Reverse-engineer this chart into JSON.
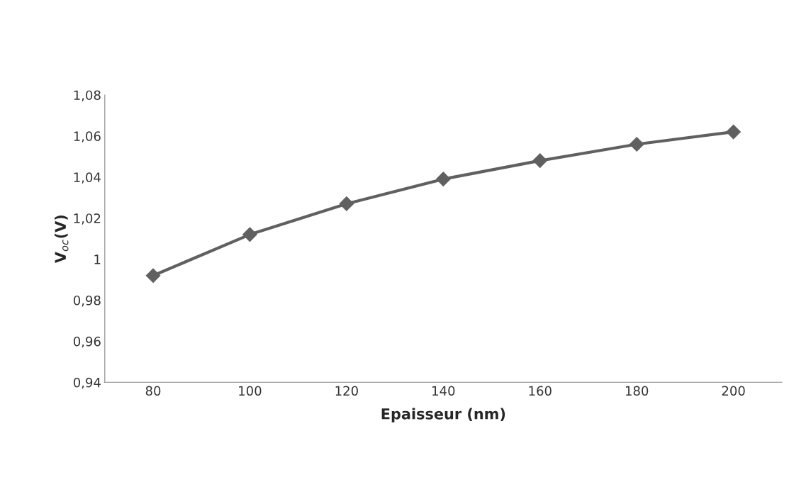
{
  "chart_data": {
    "type": "line",
    "xlabel": "Epaisseur (nm)",
    "ylabel": "V$_{oc}$(V)",
    "categories": [
      "80",
      "100",
      "120",
      "140",
      "160",
      "180",
      "200"
    ],
    "series": [
      {
        "color": "#606060",
        "values": [
          0.992,
          1.012,
          1.027,
          1.039,
          1.048,
          1.056,
          1.062
        ]
      }
    ],
    "ylim": [
      0.94,
      1.08
    ],
    "yticks": [
      {
        "value": 0.94,
        "label": "0,94"
      },
      {
        "value": 0.96,
        "label": "0,96"
      },
      {
        "value": 0.98,
        "label": "0,98"
      },
      {
        "value": 1,
        "label": "1"
      },
      {
        "value": 1.02,
        "label": "1,02"
      },
      {
        "value": 1.04,
        "label": "1,04"
      },
      {
        "value": 1.06,
        "label": "1,06"
      },
      {
        "value": 1.08,
        "label": "1,08"
      }
    ],
    "grid": false,
    "legend": false,
    "marker": "diamond",
    "line_style": "solid"
  }
}
